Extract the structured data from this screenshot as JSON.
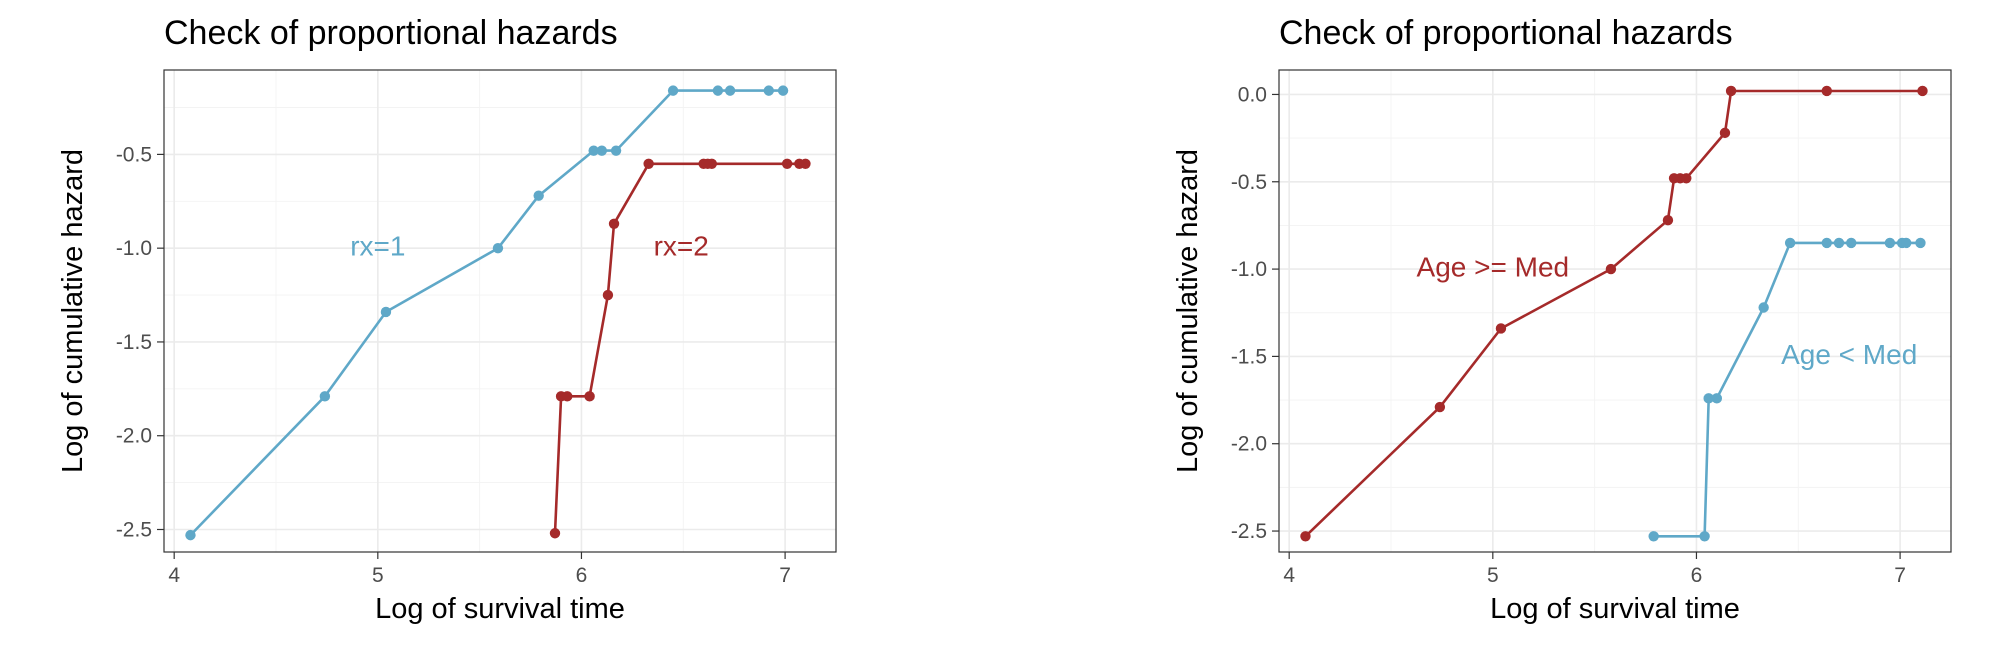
{
  "chart_data": [
    {
      "type": "line",
      "title": "Check of proportional hazards",
      "xlabel": "Log of survival time",
      "ylabel": "Log of cumulative hazard",
      "xlim": [
        3.95,
        7.25
      ],
      "ylim": [
        -2.62,
        -0.05
      ],
      "xticks": [
        4,
        5,
        6,
        7
      ],
      "xtick_labels": [
        "4",
        "5",
        "6",
        "7"
      ],
      "yticks": [
        -2.5,
        -2.0,
        -1.5,
        -1.0,
        -0.5
      ],
      "ytick_labels": [
        "-2.5",
        "-2.0",
        "-1.5",
        "-1.0",
        "-0.5"
      ],
      "grid": true,
      "series": [
        {
          "name": "rx=1",
          "color": "#5fa8c8",
          "label_at": [
            5.0,
            -1.0
          ],
          "points": [
            [
              4.08,
              -2.53
            ],
            [
              4.74,
              -1.79
            ],
            [
              5.04,
              -1.34
            ],
            [
              5.59,
              -1.0
            ],
            [
              5.79,
              -0.72
            ],
            [
              6.06,
              -0.48
            ],
            [
              6.1,
              -0.48
            ],
            [
              6.17,
              -0.48
            ],
            [
              6.45,
              -0.16
            ],
            [
              6.67,
              -0.16
            ],
            [
              6.73,
              -0.16
            ],
            [
              6.92,
              -0.16
            ],
            [
              6.99,
              -0.16
            ]
          ]
        },
        {
          "name": "rx=2",
          "color": "#a52a2a",
          "label_at": [
            6.49,
            -1.0
          ],
          "points": [
            [
              5.87,
              -2.52
            ],
            [
              5.9,
              -1.79
            ],
            [
              5.93,
              -1.79
            ],
            [
              6.04,
              -1.79
            ],
            [
              6.13,
              -1.25
            ],
            [
              6.16,
              -0.87
            ],
            [
              6.33,
              -0.55
            ],
            [
              6.6,
              -0.55
            ],
            [
              6.62,
              -0.55
            ],
            [
              6.64,
              -0.55
            ],
            [
              7.01,
              -0.55
            ],
            [
              7.07,
              -0.55
            ],
            [
              7.1,
              -0.55
            ]
          ]
        }
      ]
    },
    {
      "type": "line",
      "title": "Check of proportional hazards",
      "xlabel": "Log of survival time",
      "ylabel": "Log of cumulative hazard",
      "xlim": [
        3.95,
        7.25
      ],
      "ylim": [
        -2.62,
        0.14
      ],
      "xticks": [
        4,
        5,
        6,
        7
      ],
      "xtick_labels": [
        "4",
        "5",
        "6",
        "7"
      ],
      "yticks": [
        -2.5,
        -2.0,
        -1.5,
        -1.0,
        -0.5,
        0.0
      ],
      "ytick_labels": [
        "-2.5",
        "-2.0",
        "-1.5",
        "-1.0",
        "-0.5",
        "0.0"
      ],
      "grid": true,
      "series": [
        {
          "name": "Age >= Med",
          "color": "#a52a2a",
          "label_at": [
            5.0,
            -1.0
          ],
          "points": [
            [
              4.08,
              -2.53
            ],
            [
              4.74,
              -1.79
            ],
            [
              5.04,
              -1.34
            ],
            [
              5.58,
              -1.0
            ],
            [
              5.86,
              -0.72
            ],
            [
              5.89,
              -0.48
            ],
            [
              5.92,
              -0.48
            ],
            [
              5.95,
              -0.48
            ],
            [
              6.14,
              -0.22
            ],
            [
              6.17,
              0.02
            ],
            [
              6.64,
              0.02
            ],
            [
              7.11,
              0.02
            ]
          ]
        },
        {
          "name": "Age < Med",
          "color": "#5fa8c8",
          "label_at": [
            6.75,
            -1.5
          ],
          "points": [
            [
              5.79,
              -2.53
            ],
            [
              6.04,
              -2.53
            ],
            [
              6.06,
              -1.74
            ],
            [
              6.1,
              -1.74
            ],
            [
              6.33,
              -1.22
            ],
            [
              6.46,
              -0.85
            ],
            [
              6.64,
              -0.85
            ],
            [
              6.7,
              -0.85
            ],
            [
              6.76,
              -0.85
            ],
            [
              6.95,
              -0.85
            ],
            [
              7.01,
              -0.85
            ],
            [
              7.03,
              -0.85
            ],
            [
              7.1,
              -0.85
            ]
          ]
        }
      ]
    }
  ]
}
